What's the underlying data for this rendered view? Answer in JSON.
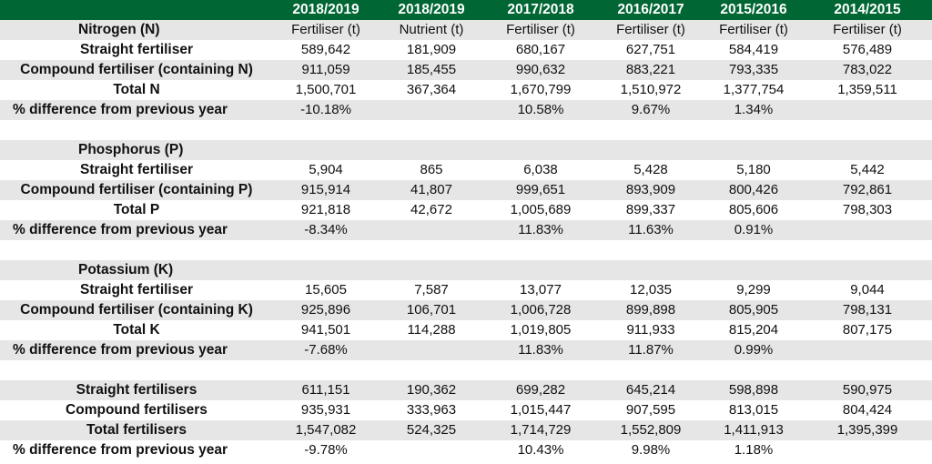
{
  "header": {
    "columns": [
      "",
      "2018/2019",
      "2018/2019",
      "2017/2018",
      "2016/2017",
      "2015/2016",
      "2014/2015"
    ]
  },
  "sections": [
    {
      "rows": [
        {
          "label": "Nitrogen (N)",
          "cells": [
            "Fertiliser (t)",
            "Nutrient (t)",
            "Fertiliser (t)",
            "Fertiliser (t)",
            "Fertiliser (t)",
            "Fertiliser (t)"
          ]
        },
        {
          "label": "Straight fertiliser",
          "cells": [
            "589,642",
            "181,909",
            "680,167",
            "627,751",
            "584,419",
            "576,489"
          ]
        },
        {
          "label": "Compound fertiliser (containing N)",
          "cells": [
            "911,059",
            "185,455",
            "990,632",
            "883,221",
            "793,335",
            "783,022"
          ]
        },
        {
          "label": "Total N",
          "cells": [
            "1,500,701",
            "367,364",
            "1,670,799",
            "1,510,972",
            "1,377,754",
            "1,359,511"
          ]
        },
        {
          "label": "% difference from previous year",
          "cells": [
            "-10.18%",
            "",
            "10.58%",
            "9.67%",
            "1.34%",
            ""
          ]
        }
      ]
    },
    {
      "rows": [
        {
          "label": "Phosphorus (P)",
          "cells": [
            "",
            "",
            "",
            "",
            "",
            ""
          ]
        },
        {
          "label": "Straight fertiliser",
          "cells": [
            "5,904",
            "865",
            "6,038",
            "5,428",
            "5,180",
            "5,442"
          ]
        },
        {
          "label": "Compound fertiliser (containing P)",
          "cells": [
            "915,914",
            "41,807",
            "999,651",
            "893,909",
            "800,426",
            "792,861"
          ]
        },
        {
          "label": "Total P",
          "cells": [
            "921,818",
            "42,672",
            "1,005,689",
            "899,337",
            "805,606",
            "798,303"
          ]
        },
        {
          "label": "% difference from previous year",
          "cells": [
            "-8.34%",
            "",
            "11.83%",
            "11.63%",
            "0.91%",
            ""
          ]
        }
      ]
    },
    {
      "rows": [
        {
          "label": "Potassium (K)",
          "cells": [
            "",
            "",
            "",
            "",
            "",
            ""
          ]
        },
        {
          "label": "Straight fertiliser",
          "cells": [
            "15,605",
            "7,587",
            "13,077",
            "12,035",
            "9,299",
            "9,044"
          ]
        },
        {
          "label": "Compound fertiliser (containing K)",
          "cells": [
            "925,896",
            "106,701",
            "1,006,728",
            "899,898",
            "805,905",
            "798,131"
          ]
        },
        {
          "label": "Total K",
          "cells": [
            "941,501",
            "114,288",
            "1,019,805",
            "911,933",
            "815,204",
            "807,175"
          ]
        },
        {
          "label": "% difference from previous year",
          "cells": [
            "-7.68%",
            "",
            "11.83%",
            "11.87%",
            "0.99%",
            ""
          ]
        }
      ]
    },
    {
      "rows": [
        {
          "label": "Straight fertilisers",
          "cells": [
            "611,151",
            "190,362",
            "699,282",
            "645,214",
            "598,898",
            "590,975"
          ]
        },
        {
          "label": "Compound fertilisers",
          "cells": [
            "935,931",
            "333,963",
            "1,015,447",
            "907,595",
            "813,015",
            "804,424"
          ]
        },
        {
          "label": "Total fertilisers",
          "cells": [
            "1,547,082",
            "524,325",
            "1,714,729",
            "1,552,809",
            "1,411,913",
            "1,395,399"
          ]
        },
        {
          "label": "% difference from previous year",
          "cells": [
            "-9.78%",
            "",
            "10.43%",
            "9.98%",
            "1.18%",
            ""
          ]
        }
      ]
    }
  ]
}
